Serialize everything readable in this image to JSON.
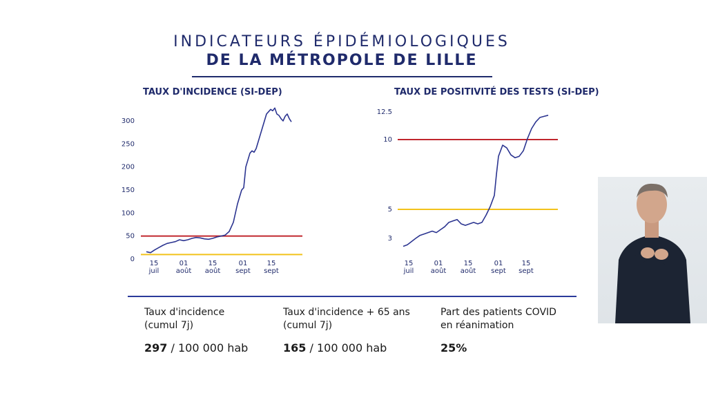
{
  "title": {
    "line1": "INDICATEURS ÉPIDÉMIOLOGIQUES",
    "line2": "DE LA MÉTROPOLE DE LILLE"
  },
  "colors": {
    "navy": "#1f2a6b",
    "line": "#2b3490",
    "threshold_red": "#c0262d",
    "threshold_yellow": "#f2c21b"
  },
  "chart_data": [
    {
      "type": "line",
      "title": "TAUX D'INCIDENCE (SI-DEP)",
      "x_ticks": [
        "15\njuil",
        "01\naoût",
        "15\naoût",
        "01\nsept",
        "15\nsept"
      ],
      "y_ticks": [
        0,
        50,
        100,
        150,
        200,
        250,
        300
      ],
      "ylim": [
        0,
        330
      ],
      "x_range_days": [
        0,
        75
      ],
      "series": [
        {
          "x": [
            0,
            2,
            4,
            6,
            8,
            10,
            12,
            14,
            16,
            18,
            20,
            22,
            24,
            26,
            28,
            30,
            32,
            34,
            36,
            38,
            40,
            42,
            44,
            46,
            47,
            48,
            49,
            50,
            51,
            52,
            53,
            54,
            55,
            56,
            57,
            58,
            59,
            60,
            61,
            62,
            63,
            64,
            65,
            66,
            67,
            68,
            69,
            70
          ],
          "values": [
            16,
            14,
            20,
            25,
            30,
            34,
            36,
            38,
            42,
            40,
            42,
            45,
            47,
            46,
            44,
            43,
            45,
            48,
            50,
            52,
            60,
            80,
            120,
            150,
            155,
            200,
            215,
            230,
            235,
            232,
            240,
            255,
            270,
            285,
            300,
            315,
            320,
            325,
            322,
            328,
            315,
            312,
            305,
            300,
            310,
            315,
            305,
            298
          ]
        }
      ],
      "thresholds": [
        {
          "value": 50,
          "color": "#c0262d"
        },
        {
          "value": 10,
          "color": "#f2c21b"
        }
      ]
    },
    {
      "type": "line",
      "title": "TAUX DE POSITIVITÉ DES TESTS (SI-DEP)",
      "x_ticks": [
        "15\njuil",
        "01\naoût",
        "15\naoût",
        "01\nsept",
        "15\nsept"
      ],
      "y_ticks": [
        3,
        5,
        10,
        12.5
      ],
      "ylim": [
        2,
        13
      ],
      "x_range_days": [
        0,
        75
      ],
      "series": [
        {
          "x": [
            0,
            2,
            4,
            6,
            8,
            10,
            12,
            14,
            16,
            18,
            20,
            22,
            24,
            26,
            28,
            30,
            32,
            34,
            36,
            38,
            40,
            42,
            44,
            45,
            46,
            48,
            50,
            52,
            54,
            56,
            58,
            60,
            62,
            64,
            66,
            68,
            70
          ],
          "values": [
            2.5,
            2.6,
            2.8,
            3.0,
            3.2,
            3.3,
            3.4,
            3.5,
            3.4,
            3.6,
            3.8,
            4.1,
            4.2,
            4.3,
            4.0,
            3.9,
            4.0,
            4.1,
            4.0,
            4.1,
            4.6,
            5.2,
            6.0,
            7.5,
            8.8,
            9.6,
            9.4,
            8.9,
            8.7,
            8.8,
            9.2,
            10.1,
            11.0,
            11.6,
            12.0,
            12.1,
            12.2
          ]
        }
      ],
      "thresholds": [
        {
          "value": 10,
          "color": "#c0262d"
        },
        {
          "value": 5,
          "color": "#f2c21b"
        }
      ]
    }
  ],
  "stats": [
    {
      "label_line1": "Taux d'incidence",
      "label_line2": "(cumul 7j)",
      "value_bold": "297",
      "value_rest": " / 100 000 hab"
    },
    {
      "label_line1": "Taux d'incidence + 65 ans",
      "label_line2": "(cumul 7j)",
      "value_bold": "165",
      "value_rest": " / 100 000 hab"
    },
    {
      "label_line1": "Part des patients COVID",
      "label_line2": "en réanimation",
      "value_bold": "25%",
      "value_rest": ""
    }
  ]
}
